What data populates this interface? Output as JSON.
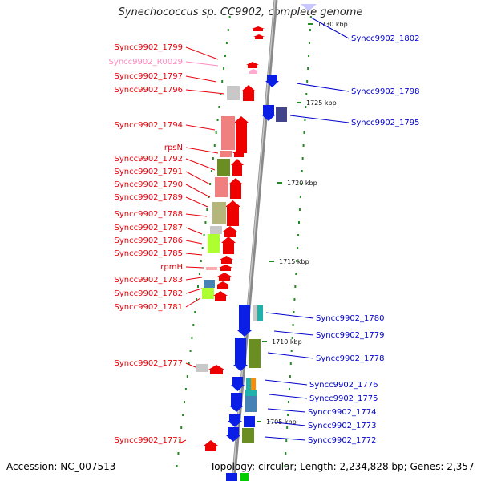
{
  "title": "Synechococcus sp. CC9902, complete genome",
  "footer": {
    "accession": "Accession: NC_007513",
    "topology": "Topology: circular; Length: 2,234,828 bp; Genes: 2,357"
  },
  "colors": {
    "forward_label": "#e8000b",
    "reverse_label": "#0000cc",
    "rna_label": "#ff88c0",
    "backbone": "#888888",
    "tick": "#228b22"
  },
  "scale": {
    "unit": "kbp",
    "markers": [
      "1730 kbp",
      "1725 kbp",
      "1720 kbp",
      "1715 kbp",
      "1710 kbp",
      "1705 kbp"
    ]
  },
  "genes_left": [
    {
      "name": "Syncc9902_1799",
      "kind": "forward"
    },
    {
      "name": "Syncc9902_R0029",
      "kind": "rna"
    },
    {
      "name": "Syncc9902_1797",
      "kind": "forward"
    },
    {
      "name": "Syncc9902_1796",
      "kind": "forward"
    },
    {
      "name": "Syncc9902_1794",
      "kind": "forward"
    },
    {
      "name": "rpsN",
      "kind": "forward"
    },
    {
      "name": "Syncc9902_1792",
      "kind": "forward"
    },
    {
      "name": "Syncc9902_1791",
      "kind": "forward"
    },
    {
      "name": "Syncc9902_1790",
      "kind": "forward"
    },
    {
      "name": "Syncc9902_1789",
      "kind": "forward"
    },
    {
      "name": "Syncc9902_1788",
      "kind": "forward"
    },
    {
      "name": "Syncc9902_1787",
      "kind": "forward"
    },
    {
      "name": "Syncc9902_1786",
      "kind": "forward"
    },
    {
      "name": "Syncc9902_1785",
      "kind": "forward"
    },
    {
      "name": "rpmH",
      "kind": "forward"
    },
    {
      "name": "Syncc9902_1783",
      "kind": "forward"
    },
    {
      "name": "Syncc9902_1782",
      "kind": "forward"
    },
    {
      "name": "Syncc9902_1781",
      "kind": "forward"
    },
    {
      "name": "Syncc9902_1777",
      "kind": "forward"
    },
    {
      "name": "Syncc9902_1771",
      "kind": "forward"
    }
  ],
  "genes_right": [
    {
      "name": "Syncc9902_1802",
      "kind": "reverse"
    },
    {
      "name": "Syncc9902_1798",
      "kind": "reverse"
    },
    {
      "name": "Syncc9902_1795",
      "kind": "reverse"
    },
    {
      "name": "Syncc9902_1780",
      "kind": "reverse"
    },
    {
      "name": "Syncc9902_1779",
      "kind": "reverse"
    },
    {
      "name": "Syncc9902_1778",
      "kind": "reverse"
    },
    {
      "name": "Syncc9902_1776",
      "kind": "reverse"
    },
    {
      "name": "Syncc9902_1775",
      "kind": "reverse"
    },
    {
      "name": "Syncc9902_1774",
      "kind": "reverse"
    },
    {
      "name": "Syncc9902_1773",
      "kind": "reverse"
    },
    {
      "name": "Syncc9902_1772",
      "kind": "reverse"
    }
  ]
}
